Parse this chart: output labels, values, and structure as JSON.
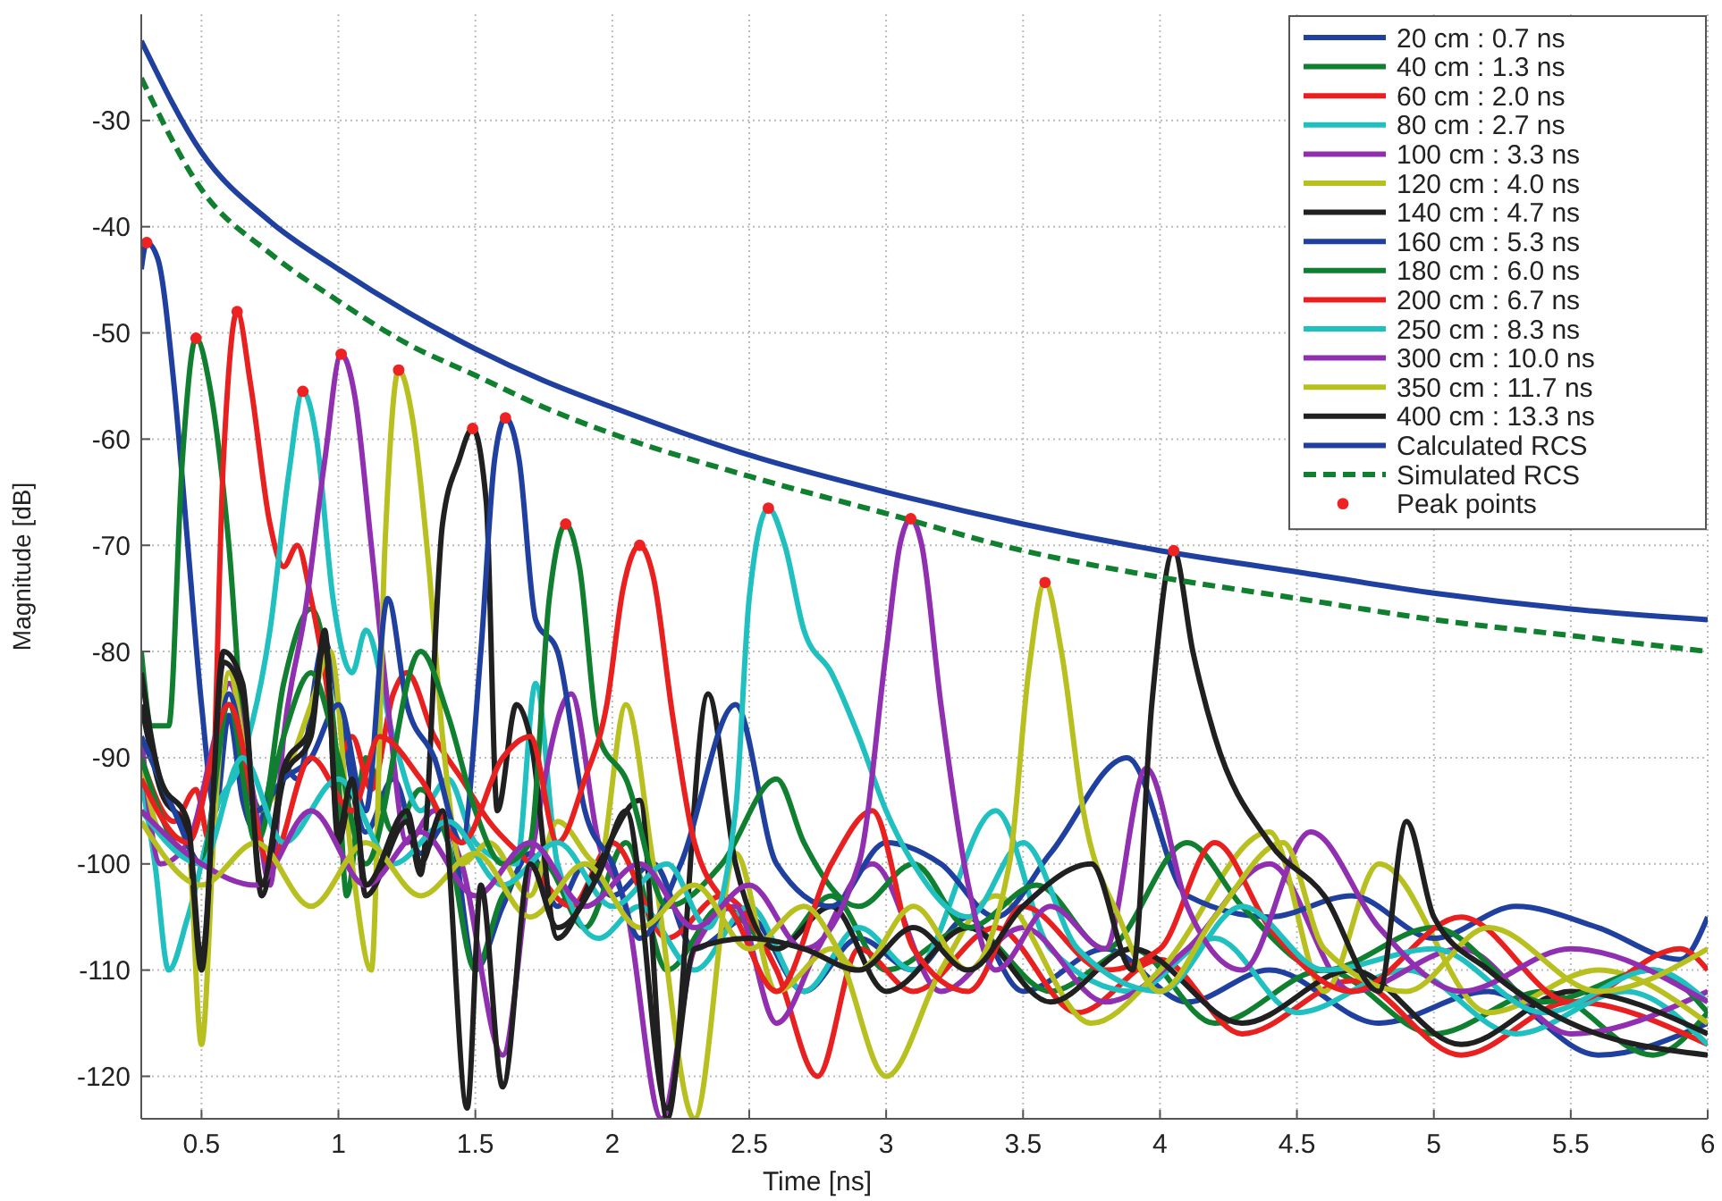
{
  "chart_data": {
    "type": "line",
    "xlabel": "Time [ns]",
    "ylabel": "Magnitude [dB]",
    "xlim": [
      0.28,
      6.0
    ],
    "ylim": [
      -124,
      -20
    ],
    "xticks": [
      {
        "value": 0.5,
        "label": "0.5"
      },
      1,
      {
        "value": 1.5,
        "label": "1.5"
      },
      2,
      {
        "value": 2.5,
        "label": "2.5"
      },
      3,
      {
        "value": 3.5,
        "label": "3.5"
      },
      4,
      {
        "value": 4.5,
        "label": "4.5"
      },
      5,
      {
        "value": 5.5,
        "label": "5.5"
      },
      6
    ],
    "yticks": [
      -30,
      -40,
      -50,
      -60,
      -70,
      -80,
      -90,
      -100,
      -110,
      -120
    ],
    "grid": true,
    "legend": "top right",
    "marker": "none",
    "line_style": "solid",
    "series": [
      {
        "name": "20 cm : 0.7 ns",
        "color": "#2040a0",
        "x": [
          0.28,
          0.3,
          0.34,
          0.4,
          0.45,
          0.5,
          0.55,
          0.6,
          0.65,
          0.7,
          0.78,
          0.85,
          0.95,
          1.0,
          1.1,
          1.2,
          1.3,
          1.4,
          1.5,
          1.6,
          1.7,
          1.8,
          1.9,
          2.0,
          2.15,
          2.3,
          2.5,
          2.7,
          2.9,
          3.1,
          3.3,
          3.5,
          3.8,
          4.1,
          4.4,
          4.8,
          5.2,
          5.6,
          6.0
        ],
        "values": [
          -44,
          -41.5,
          -43,
          -55,
          -70,
          -85,
          -95,
          -86,
          -94,
          -97,
          -90,
          -92,
          -79,
          -85,
          -97,
          -92,
          -99,
          -96,
          -110,
          -104,
          -99,
          -104,
          -100,
          -103,
          -100,
          -108,
          -105,
          -112,
          -107,
          -110,
          -105,
          -112,
          -108,
          -113,
          -110,
          -115,
          -112,
          -118,
          -115
        ]
      },
      {
        "name": "40 cm : 1.3 ns",
        "color": "#108030",
        "x": [
          0.28,
          0.32,
          0.38,
          0.43,
          0.48,
          0.53,
          0.6,
          0.66,
          0.72,
          0.8,
          0.9,
          0.95,
          1.0,
          1.03,
          1.1,
          1.2,
          1.3,
          1.4,
          1.5,
          1.6,
          1.75,
          1.9,
          2.05,
          2.2,
          2.4,
          2.6,
          2.8,
          3.0,
          3.3,
          3.6,
          3.9,
          4.2,
          4.6,
          5.0,
          5.4,
          5.8,
          6.0
        ],
        "values": [
          -80,
          -87,
          -87,
          -62,
          -50.5,
          -55,
          -70,
          -90,
          -95,
          -83,
          -76,
          -80,
          -92,
          -103,
          -90,
          -97,
          -93,
          -98,
          -110,
          -103,
          -100,
          -106,
          -98,
          -110,
          -104,
          -108,
          -103,
          -110,
          -106,
          -112,
          -108,
          -115,
          -110,
          -116,
          -112,
          -118,
          -114
        ]
      },
      {
        "name": "60 cm : 2.0 ns",
        "color": "#e82020",
        "x": [
          0.28,
          0.4,
          0.48,
          0.53,
          0.58,
          0.63,
          0.68,
          0.75,
          0.8,
          0.85,
          0.9,
          0.95,
          1.0,
          1.05,
          1.12,
          1.2,
          1.25,
          1.35,
          1.45,
          1.55,
          1.7,
          1.85,
          2.0,
          2.2,
          2.4,
          2.6,
          2.75,
          2.9,
          3.1,
          3.4,
          3.7,
          4.0,
          4.3,
          4.7,
          5.1,
          5.5,
          6.0
        ],
        "values": [
          -90,
          -96,
          -93,
          -98,
          -62,
          -48,
          -55,
          -68,
          -72,
          -70,
          -75,
          -82,
          -90,
          -88,
          -93,
          -84,
          -82,
          -88,
          -92,
          -96,
          -100,
          -104,
          -98,
          -107,
          -103,
          -110,
          -120,
          -108,
          -112,
          -106,
          -114,
          -109,
          -116,
          -111,
          -118,
          -113,
          -117
        ]
      },
      {
        "name": "80 cm : 2.7 ns",
        "color": "#20c0c0",
        "x": [
          0.28,
          0.33,
          0.38,
          0.45,
          0.55,
          0.65,
          0.75,
          0.82,
          0.87,
          0.92,
          0.98,
          1.05,
          1.1,
          1.2,
          1.3,
          1.4,
          1.5,
          1.65,
          1.72,
          1.8,
          1.95,
          2.1,
          2.3,
          2.5,
          2.7,
          2.9,
          3.1,
          3.4,
          3.6,
          3.9,
          4.2,
          4.5,
          4.9,
          5.3,
          5.7,
          6.0
        ],
        "values": [
          -92,
          -100,
          -110,
          -105,
          -95,
          -90,
          -78,
          -63,
          -55.5,
          -60,
          -75,
          -82,
          -78,
          -88,
          -95,
          -92,
          -98,
          -100,
          -83,
          -100,
          -107,
          -104,
          -110,
          -104,
          -112,
          -106,
          -110,
          -95,
          -108,
          -112,
          -107,
          -114,
          -110,
          -116,
          -112,
          -117
        ]
      },
      {
        "name": "100 cm : 3.3 ns",
        "color": "#9030b0",
        "x": [
          0.28,
          0.35,
          0.45,
          0.55,
          0.6,
          0.7,
          0.75,
          0.8,
          0.88,
          0.95,
          1.01,
          1.06,
          1.12,
          1.18,
          1.25,
          1.35,
          1.45,
          1.6,
          1.7,
          1.85,
          1.95,
          2.05,
          2.18,
          2.3,
          2.45,
          2.6,
          2.75,
          2.95,
          3.2,
          3.5,
          3.8,
          4.1,
          4.4,
          4.7,
          5.1,
          5.5,
          6.0
        ],
        "values": [
          -88,
          -100,
          -98,
          -88,
          -83,
          -95,
          -102,
          -88,
          -76,
          -62,
          -52,
          -56,
          -70,
          -85,
          -98,
          -95,
          -100,
          -118,
          -100,
          -84,
          -98,
          -104,
          -124,
          -108,
          -104,
          -115,
          -108,
          -100,
          -112,
          -106,
          -113,
          -108,
          -100,
          -112,
          -108,
          -116,
          -112
        ]
      },
      {
        "name": "120 cm : 4.0 ns",
        "color": "#b8c020",
        "x": [
          0.28,
          0.35,
          0.45,
          0.5,
          0.55,
          0.6,
          0.7,
          0.8,
          0.9,
          0.97,
          1.05,
          1.12,
          1.17,
          1.22,
          1.27,
          1.33,
          1.38,
          1.45,
          1.55,
          1.7,
          1.8,
          1.95,
          2.05,
          2.15,
          2.3,
          2.45,
          2.6,
          2.8,
          3.0,
          3.2,
          3.4,
          3.75,
          4.0,
          4.4,
          4.6,
          4.8,
          5.2,
          5.6,
          6.0
        ],
        "values": [
          -90,
          -97,
          -98,
          -117,
          -95,
          -82,
          -95,
          -92,
          -85,
          -80,
          -100,
          -110,
          -70,
          -53.5,
          -58,
          -72,
          -88,
          -100,
          -98,
          -103,
          -96,
          -100,
          -85,
          -100,
          -124,
          -99,
          -112,
          -108,
          -120,
          -110,
          -103,
          -115,
          -110,
          -97,
          -112,
          -100,
          -114,
          -110,
          -115
        ]
      },
      {
        "name": "140 cm : 4.7 ns",
        "color": "#202020",
        "x": [
          0.28,
          0.35,
          0.45,
          0.5,
          0.58,
          0.65,
          0.72,
          0.8,
          0.9,
          0.95,
          1.0,
          1.05,
          1.1,
          1.25,
          1.3,
          1.38,
          1.44,
          1.49,
          1.54,
          1.58,
          1.65,
          1.7,
          1.8,
          1.95,
          2.1,
          2.2,
          2.35,
          2.45,
          2.6,
          2.8,
          3.0,
          3.3,
          3.6,
          3.9,
          4.3,
          4.7,
          5.1,
          5.5,
          6.0
        ],
        "values": [
          -85,
          -93,
          -97,
          -110,
          -80,
          -83,
          -103,
          -92,
          -88,
          -78,
          -98,
          -93,
          -103,
          -96,
          -101,
          -68,
          -62,
          -59,
          -66,
          -95,
          -85,
          -88,
          -107,
          -100,
          -94,
          -124,
          -84,
          -100,
          -108,
          -104,
          -112,
          -106,
          -113,
          -108,
          -115,
          -110,
          -117,
          -112,
          -116
        ]
      },
      {
        "name": "160 cm : 5.3 ns",
        "color": "#2040a0",
        "x": [
          0.28,
          0.4,
          0.5,
          0.6,
          0.7,
          0.8,
          0.9,
          1.0,
          1.1,
          1.18,
          1.25,
          1.35,
          1.45,
          1.52,
          1.57,
          1.61,
          1.66,
          1.72,
          1.8,
          1.9,
          2.0,
          2.1,
          2.25,
          2.45,
          2.6,
          2.8,
          3.0,
          3.2,
          3.4,
          3.6,
          3.88,
          4.1,
          4.4,
          4.7,
          5.0,
          5.3,
          5.6,
          5.9,
          6.0
        ],
        "values": [
          -88,
          -95,
          -100,
          -84,
          -95,
          -92,
          -90,
          -85,
          -95,
          -75,
          -85,
          -90,
          -98,
          -80,
          -62,
          -58,
          -62,
          -77,
          -80,
          -95,
          -100,
          -107,
          -100,
          -85,
          -100,
          -104,
          -98,
          -100,
          -105,
          -99,
          -90,
          -103,
          -105,
          -103,
          -107,
          -104,
          -106,
          -109,
          -105
        ]
      },
      {
        "name": "180 cm : 6.0 ns",
        "color": "#108030",
        "x": [
          0.28,
          0.4,
          0.5,
          0.6,
          0.7,
          0.8,
          0.9,
          1.0,
          1.1,
          1.3,
          1.4,
          1.5,
          1.6,
          1.7,
          1.77,
          1.83,
          1.88,
          1.95,
          2.05,
          2.2,
          2.4,
          2.6,
          2.7,
          2.9,
          3.1,
          3.3,
          3.55,
          3.8,
          4.1,
          4.3,
          4.6,
          5.0,
          5.4,
          5.8,
          6.0
        ],
        "values": [
          -90,
          -98,
          -100,
          -85,
          -98,
          -88,
          -82,
          -90,
          -100,
          -80,
          -86,
          -95,
          -100,
          -98,
          -75,
          -68,
          -72,
          -88,
          -92,
          -104,
          -100,
          -92,
          -98,
          -104,
          -100,
          -106,
          -102,
          -108,
          -98,
          -104,
          -110,
          -106,
          -113,
          -110,
          -114
        ]
      },
      {
        "name": "200 cm : 6.7 ns",
        "color": "#e82020",
        "x": [
          0.28,
          0.45,
          0.6,
          0.75,
          0.9,
          1.05,
          1.15,
          1.3,
          1.45,
          1.6,
          1.7,
          1.8,
          1.9,
          1.98,
          2.04,
          2.1,
          2.15,
          2.22,
          2.3,
          2.45,
          2.6,
          2.8,
          2.95,
          3.1,
          3.3,
          3.5,
          3.8,
          4.0,
          4.2,
          4.4,
          4.7,
          5.1,
          5.5,
          5.9,
          6.0
        ],
        "values": [
          -92,
          -98,
          -85,
          -100,
          -90,
          -95,
          -88,
          -92,
          -98,
          -90,
          -88,
          -98,
          -92,
          -85,
          -74,
          -70,
          -73,
          -86,
          -98,
          -105,
          -112,
          -100,
          -95,
          -108,
          -112,
          -104,
          -110,
          -108,
          -98,
          -106,
          -112,
          -105,
          -113,
          -108,
          -110
        ]
      },
      {
        "name": "250 cm : 8.3 ns",
        "color": "#20c0c0",
        "x": [
          0.28,
          0.5,
          0.65,
          0.8,
          1.0,
          1.2,
          1.4,
          1.6,
          1.8,
          2.0,
          2.2,
          2.35,
          2.45,
          2.5,
          2.57,
          2.63,
          2.7,
          2.8,
          2.9,
          3.0,
          3.1,
          3.3,
          3.5,
          3.7,
          4.0,
          4.3,
          4.6,
          5.0,
          5.4,
          5.8,
          6.0
        ],
        "values": [
          -95,
          -100,
          -90,
          -98,
          -92,
          -100,
          -96,
          -102,
          -98,
          -104,
          -100,
          -106,
          -95,
          -75,
          -66.5,
          -70,
          -78,
          -82,
          -88,
          -95,
          -100,
          -105,
          -98,
          -108,
          -112,
          -104,
          -110,
          -108,
          -114,
          -110,
          -113
        ]
      },
      {
        "name": "300 cm : 10.0 ns",
        "color": "#9030b0",
        "x": [
          0.28,
          0.5,
          0.7,
          0.9,
          1.1,
          1.3,
          1.5,
          1.7,
          1.9,
          2.1,
          2.3,
          2.5,
          2.7,
          2.9,
          3.0,
          3.05,
          3.09,
          3.13,
          3.2,
          3.3,
          3.4,
          3.6,
          3.8,
          3.95,
          4.1,
          4.3,
          4.55,
          4.8,
          5.1,
          5.5,
          6.0
        ],
        "values": [
          -95,
          -100,
          -102,
          -95,
          -102,
          -97,
          -103,
          -98,
          -104,
          -100,
          -106,
          -102,
          -108,
          -100,
          -80,
          -70,
          -67.5,
          -70,
          -85,
          -102,
          -110,
          -104,
          -108,
          -91,
          -104,
          -110,
          -97,
          -106,
          -112,
          -108,
          -113
        ]
      },
      {
        "name": "350 cm : 11.7 ns",
        "color": "#b8c020",
        "x": [
          0.28,
          0.5,
          0.7,
          0.9,
          1.1,
          1.3,
          1.5,
          1.7,
          1.9,
          2.1,
          2.3,
          2.5,
          2.7,
          2.9,
          3.1,
          3.3,
          3.45,
          3.52,
          3.58,
          3.64,
          3.72,
          3.85,
          4.0,
          4.2,
          4.45,
          4.6,
          4.9,
          5.2,
          5.6,
          6.0
        ],
        "values": [
          -96,
          -102,
          -98,
          -104,
          -98,
          -103,
          -99,
          -105,
          -100,
          -106,
          -102,
          -108,
          -104,
          -110,
          -104,
          -110,
          -100,
          -82,
          -73.5,
          -80,
          -95,
          -105,
          -112,
          -105,
          -98,
          -108,
          -112,
          -106,
          -112,
          -108
        ]
      },
      {
        "name": "400 cm : 13.3 ns",
        "color": "#202020",
        "x": [
          0.28,
          0.35,
          0.45,
          0.5,
          0.58,
          0.65,
          0.72,
          0.8,
          0.9,
          0.95,
          1.0,
          1.05,
          1.1,
          1.25,
          1.3,
          1.38,
          1.47,
          1.52,
          1.6,
          1.7,
          1.8,
          1.95,
          2.05,
          2.2,
          2.3,
          2.5,
          2.7,
          2.9,
          3.1,
          3.3,
          3.5,
          3.75,
          3.9,
          3.97,
          4.05,
          4.12,
          4.2,
          4.4,
          4.6,
          4.8,
          4.9,
          5.0,
          5.2,
          5.5,
          6.0
        ],
        "values": [
          -82,
          -92,
          -96,
          -109,
          -81,
          -84,
          -102,
          -91,
          -87,
          -79,
          -97,
          -92,
          -102,
          -95,
          -100,
          -95,
          -123,
          -102,
          -121,
          -100,
          -106,
          -101,
          -95,
          -123,
          -108,
          -107,
          -108,
          -110,
          -106,
          -110,
          -104,
          -100,
          -110,
          -85,
          -70.5,
          -80,
          -88,
          -98,
          -103,
          -112,
          -96,
          -105,
          -110,
          -115,
          -118
        ]
      },
      {
        "name": "Calculated RCS",
        "color": "#2040a0",
        "x": [
          0.28,
          0.5,
          0.75,
          1,
          1.25,
          1.5,
          1.75,
          2,
          2.5,
          3,
          3.5,
          4,
          4.5,
          5,
          5.5,
          6
        ],
        "values": [
          -22.5,
          -33,
          -39.5,
          -44,
          -48,
          -51.5,
          -54.5,
          -57,
          -61.5,
          -65,
          -68,
          -70.5,
          -72.5,
          -74.5,
          -76,
          -77
        ]
      },
      {
        "name": "Simulated RCS",
        "color": "#108030",
        "line_style": "dashed",
        "x": [
          0.28,
          0.5,
          0.75,
          1,
          1.25,
          1.5,
          1.75,
          2,
          2.5,
          3,
          3.5,
          4,
          4.5,
          5,
          5.5,
          6
        ],
        "values": [
          -26,
          -36.5,
          -42.5,
          -47,
          -51,
          -54,
          -57,
          -59.5,
          -63.5,
          -67,
          -70.5,
          -73,
          -75,
          -77,
          -78.5,
          -80
        ]
      },
      {
        "name": "Peak points",
        "type": "scatter",
        "marker": "circle",
        "color": "#ee2222",
        "x": [
          0.3,
          0.48,
          0.63,
          0.87,
          1.01,
          1.22,
          1.49,
          1.61,
          1.83,
          2.1,
          2.57,
          3.09,
          3.58,
          4.05
        ],
        "values": [
          -41.5,
          -50.5,
          -48,
          -55.5,
          -52,
          -53.5,
          -59,
          -58,
          -68,
          -70,
          -66.5,
          -67.5,
          -73.5,
          -70.5
        ]
      }
    ]
  }
}
